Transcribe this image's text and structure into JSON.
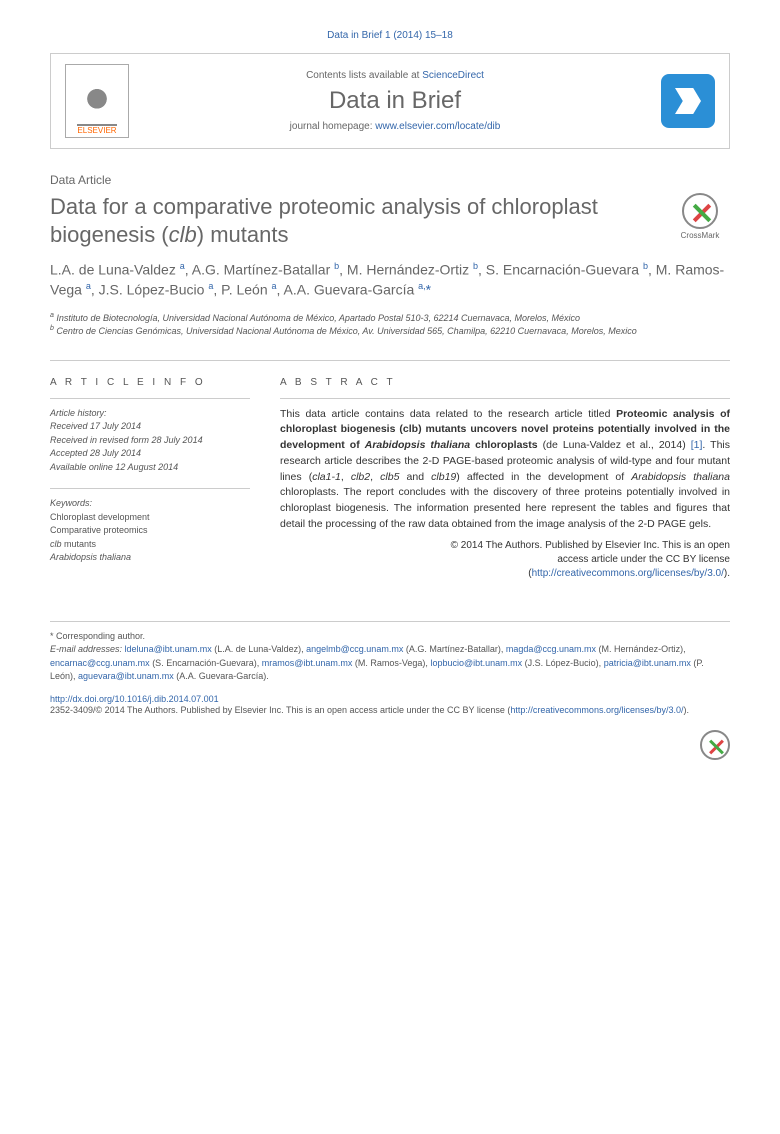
{
  "journal_ref": "Data in Brief 1 (2014) 15–18",
  "header": {
    "elsevier_label": "ELSEVIER",
    "contents_prefix": "Contents lists available at ",
    "contents_link": "ScienceDirect",
    "journal_name": "Data in Brief",
    "homepage_prefix": "journal homepage: ",
    "homepage_link": "www.elsevier.com/locate/dib"
  },
  "article_type": "Data Article",
  "title_part1": "Data for a comparative proteomic analysis of chloroplast biogenesis (",
  "title_italic": "clb",
  "title_part2": ") mutants",
  "crossmark_label": "CrossMark",
  "authors_html": "L.A. de Luna-Valdez <sup>a</sup>, A.G. Martínez-Batallar <sup>b</sup>, M. Hernández-Ortiz <sup>b</sup>, S. Encarnación-Guevara <sup>b</sup>, M. Ramos-Vega <sup>a</sup>, J.S. López-Bucio <sup>a</sup>, P. León <sup>a</sup>, A.A. Guevara-García <sup>a,</sup><span class=\"corr\">*</span>",
  "affiliations": {
    "a": "Instituto de Biotecnología, Universidad Nacional Autónoma de México, Apartado Postal 510-3, 62214 Cuernavaca, Morelos, México",
    "b": "Centro de Ciencias Genómicas, Universidad Nacional Autónoma de México, Av. Universidad 565, Chamilpa, 62210 Cuernavaca, Morelos, Mexico"
  },
  "info_head": "A R T I C L E  I N F O",
  "abstract_head": "A B S T R A C T",
  "history": {
    "label": "Article history:",
    "received": "Received 17 July 2014",
    "revised": "Received in revised form 28 July 2014",
    "accepted": "Accepted 28 July 2014",
    "online": "Available online 12 August 2014"
  },
  "keywords": {
    "label": "Keywords:",
    "k1": "Chloroplast development",
    "k2": "Comparative proteomics",
    "k3_pre": "clb",
    "k3_post": " mutants",
    "k4": "Arabidopsis thaliana"
  },
  "abstract_html": "This data article contains data related to the research article titled <span class=\"bold\">Proteomic analysis of chloroplast biogenesis (clb) mutants uncovers novel proteins potentially involved in the development of <span class=\"italic\">Arabidopsis thaliana</span> chloroplasts</span> (de Luna-Valdez et al., 2014) <span class=\"ref\">[1]</span>. This research article describes the 2-D PAGE-based proteomic analysis of wild-type and four mutant lines (<span class=\"italic\">cla1-1</span>, <span class=\"italic\">clb2</span>, <span class=\"italic\">clb5</span> and <span class=\"italic\">clb19</span>) affected in the development of <span class=\"italic\">Arabidopsis thaliana</span> chloroplasts. The report concludes with the discovery of three proteins potentially involved in chloroplast biogenesis. The information presented here represent the tables and figures that detail the processing of the raw data obtained from the image analysis of the 2-D PAGE gels.",
  "copyright": {
    "line1": "© 2014 The Authors. Published by Elsevier Inc. This is an open",
    "line2": "access article under the CC BY license",
    "link": "http://creativecommons.org/licenses/by/3.0/"
  },
  "footnote": {
    "corr_label": "* Corresponding author.",
    "email_label": "E-mail addresses:",
    "emails": [
      {
        "addr": "ldeluna@ibt.unam.mx",
        "name": "(L.A. de Luna-Valdez)"
      },
      {
        "addr": "angelmb@ccg.unam.mx",
        "name": "(A.G. Martínez-Batallar)"
      },
      {
        "addr": "magda@ccg.unam.mx",
        "name": "(M. Hernández-Ortiz)"
      },
      {
        "addr": "encarnac@ccg.unam.mx",
        "name": "(S. Encarnación-Guevara)"
      },
      {
        "addr": "mramos@ibt.unam.mx",
        "name": "(M. Ramos-Vega)"
      },
      {
        "addr": "lopbucio@ibt.unam.mx",
        "name": "(J.S. López-Bucio)"
      },
      {
        "addr": "patricia@ibt.unam.mx",
        "name": "(P. León)"
      },
      {
        "addr": "aguevara@ibt.unam.mx",
        "name": "(A.A. Guevara-García)"
      }
    ]
  },
  "doi": "http://dx.doi.org/10.1016/j.dib.2014.07.001",
  "license_foot": "2352-3409/© 2014 The Authors. Published by Elsevier Inc. This is an open access article under the CC BY license",
  "license_link": "http://creativecommons.org/licenses/by/3.0/",
  "colors": {
    "link": "#3366aa",
    "heading": "#676767",
    "text": "#333333",
    "rule": "#cccccc",
    "elsevier_orange": "#ff6600",
    "dib_blue": "#2b8fd6"
  }
}
